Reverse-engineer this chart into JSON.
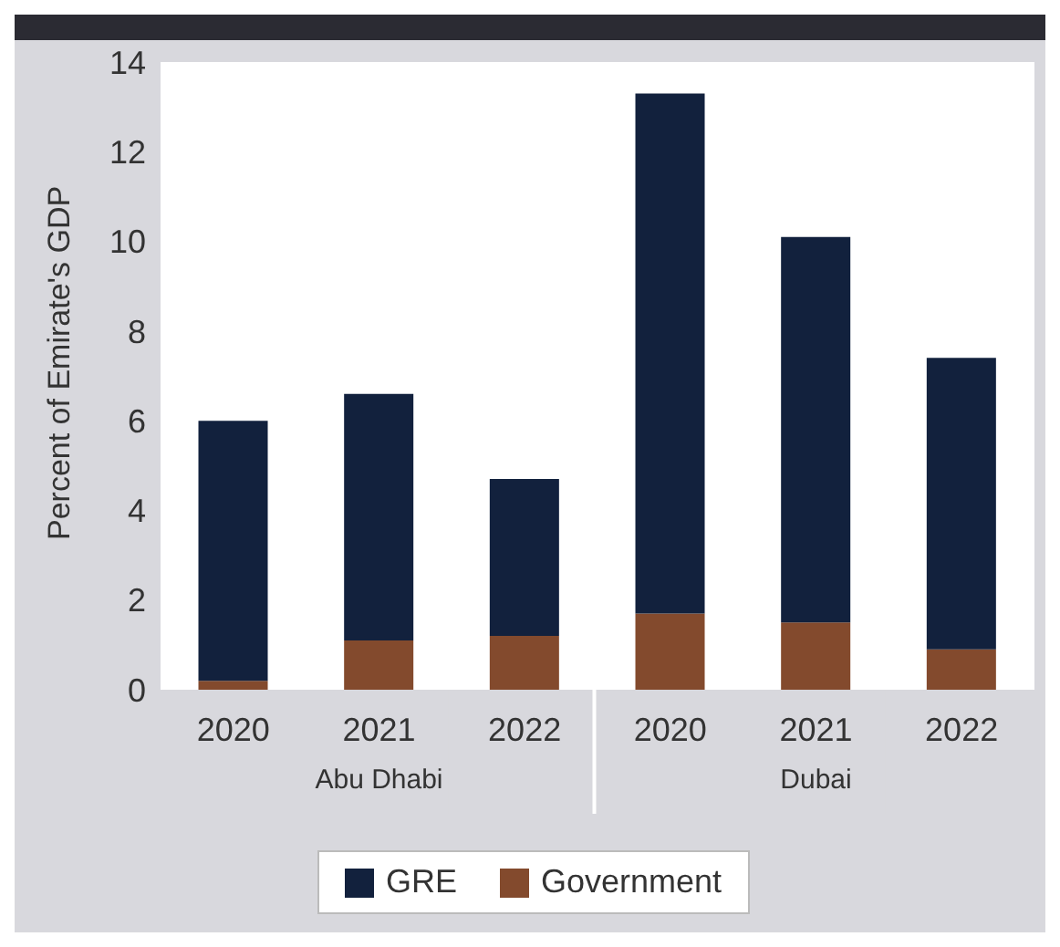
{
  "chart_data": {
    "type": "bar",
    "ylabel": "Percent of Emirate's GDP",
    "categories": [
      "2020",
      "2021",
      "2022",
      "2020",
      "2021",
      "2022"
    ],
    "annotations": [
      "Abu Dhabi",
      "Dubai"
    ],
    "stacked": true,
    "series": [
      {
        "name": "Government",
        "color": "#834a2d",
        "values": [
          0.2,
          1.1,
          1.2,
          1.7,
          1.5,
          0.9
        ]
      },
      {
        "name": "GRE",
        "color": "#12213d",
        "values": [
          5.8,
          5.5,
          3.5,
          11.6,
          8.6,
          6.5
        ]
      }
    ],
    "ylim": [
      0,
      14
    ],
    "yticks": [
      0,
      2,
      4,
      6,
      8,
      10,
      12,
      14
    ],
    "legend": "bottom"
  }
}
